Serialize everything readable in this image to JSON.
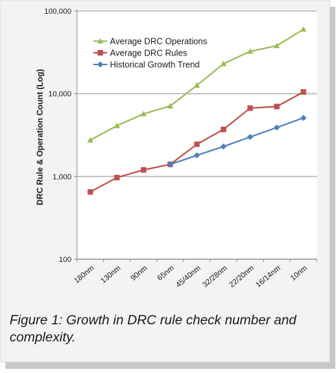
{
  "chart_data": {
    "type": "line",
    "y_scale": "log",
    "ylabel": "DRC Rule  & Operation Count (Log)",
    "ylim": [
      100,
      100000
    ],
    "y_ticks": [
      100,
      1000,
      10000,
      100000
    ],
    "y_tick_labels": [
      "100",
      "1,000",
      "10,000",
      "100,000"
    ],
    "grid": "horizontal major gridlines",
    "legend_position": "top-left",
    "categories": [
      "180nm",
      "130nm",
      "90nm",
      "65nm",
      "45/40nm",
      "32/28nm",
      "22/20nm",
      "16/14nm",
      "10nm"
    ],
    "series": [
      {
        "name": "Average DRC Operations",
        "color": "#9bbb59",
        "marker": "triangle",
        "values": [
          2750,
          4100,
          5700,
          7100,
          12600,
          23000,
          32500,
          38000,
          60000
        ]
      },
      {
        "name": "Average DRC Rules",
        "color": "#c0504d",
        "marker": "square",
        "values": [
          650,
          970,
          1200,
          1400,
          2450,
          3700,
          6700,
          7000,
          10500
        ]
      },
      {
        "name": "Historical Growth Trend",
        "color": "#4f81bd",
        "marker": "diamond",
        "values": [
          null,
          null,
          null,
          1400,
          1800,
          2300,
          3000,
          3900,
          5100
        ]
      }
    ]
  },
  "caption": "Figure 1: Growth in DRC rule check number and complexity.",
  "colors": {
    "frame_shadow": "#c8c8c8",
    "panel": "#f3f3f3",
    "gridline": "#b0b0b0"
  }
}
